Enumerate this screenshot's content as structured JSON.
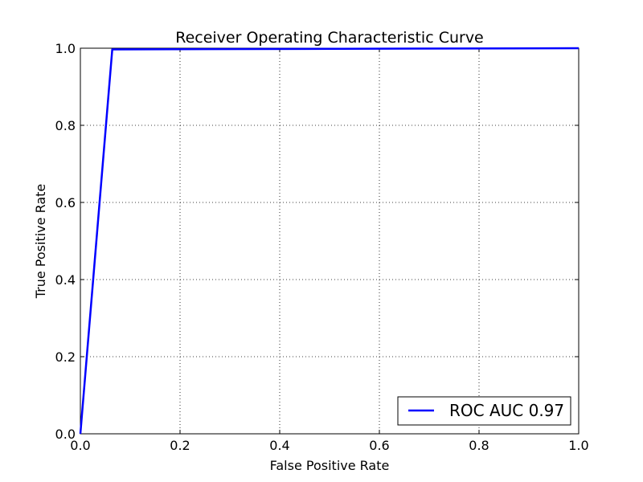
{
  "chart_data": {
    "type": "line",
    "title": "Receiver Operating Characteristic Curve",
    "xlabel": "False Positive Rate",
    "ylabel": "True Positive Rate",
    "xlim": [
      0.0,
      1.0
    ],
    "ylim": [
      0.0,
      1.0
    ],
    "xticks": [
      "0.0",
      "0.2",
      "0.4",
      "0.6",
      "0.8",
      "1.0"
    ],
    "yticks": [
      "0.0",
      "0.2",
      "0.4",
      "0.6",
      "0.8",
      "1.0"
    ],
    "grid": true,
    "legend_position": "lower-right",
    "series": [
      {
        "name": "ROC AUC 0.97",
        "color": "#0000ff",
        "x": [
          0.0,
          0.064,
          1.0
        ],
        "y": [
          0.0,
          0.997,
          1.0
        ]
      }
    ]
  }
}
